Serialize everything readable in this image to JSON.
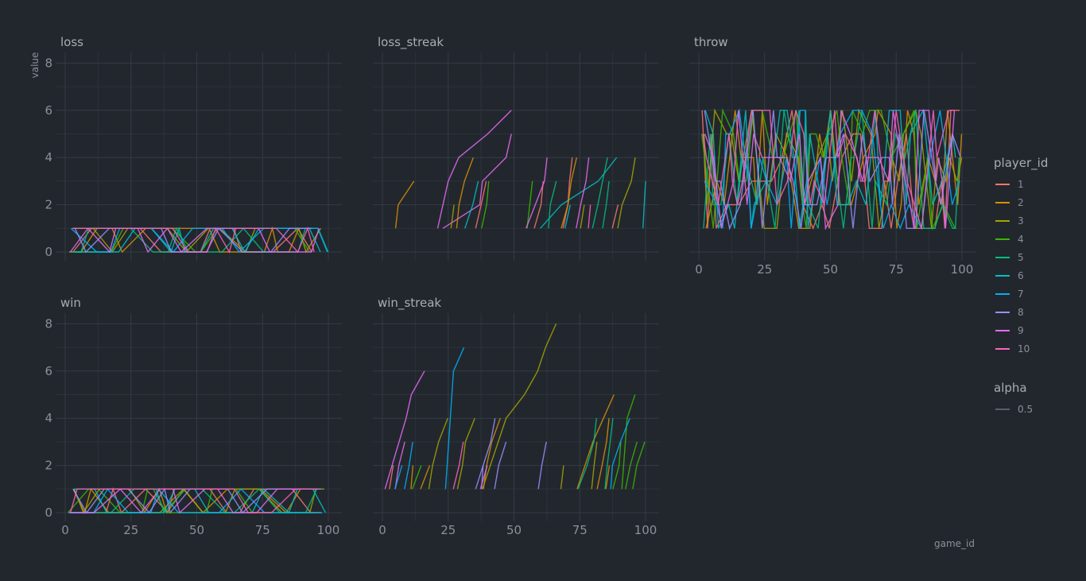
{
  "chart_data": {
    "type": "line",
    "facets": [
      "loss",
      "loss_streak",
      "throw",
      "win",
      "win_streak"
    ],
    "xlabel": "game_id",
    "ylabel": "value",
    "xlim": [
      0,
      100
    ],
    "ylim": [
      0,
      8
    ],
    "x_ticks": [
      0,
      25,
      50,
      75,
      100
    ],
    "y_ticks": [
      0,
      2,
      4,
      6,
      8
    ],
    "grid": true,
    "legend": {
      "title": "player_id",
      "placement": "right",
      "entries": [
        "1",
        "2",
        "3",
        "4",
        "5",
        "6",
        "7",
        "8",
        "9",
        "10"
      ]
    },
    "legend_alpha": {
      "title": "alpha",
      "entries": [
        "0.5"
      ]
    },
    "colors": [
      "#f8766d",
      "#d89000",
      "#a3a500",
      "#39b600",
      "#00bf7d",
      "#00bfc4",
      "#00b0f6",
      "#9590ff",
      "#e76bf3",
      "#ff62bc"
    ],
    "series_samples": {
      "loss_streak": [
        {
          "player": "2",
          "x": [
            5,
            6,
            12
          ],
          "y": [
            1,
            2,
            3
          ]
        },
        {
          "player": "9",
          "x": [
            21,
            25,
            29,
            40,
            49
          ],
          "y": [
            1,
            3,
            4,
            5,
            6
          ]
        },
        {
          "player": "9",
          "x": [
            23,
            37,
            38,
            47,
            49
          ],
          "y": [
            1,
            2,
            3,
            4,
            5
          ]
        },
        {
          "player": "4",
          "x": [
            55,
            57
          ],
          "y": [
            1,
            3
          ]
        },
        {
          "player": "6",
          "x": [
            60,
            68,
            82,
            89
          ],
          "y": [
            1,
            2,
            3,
            4
          ]
        },
        {
          "player": "6",
          "x": [
            99,
            100
          ],
          "y": [
            1,
            3
          ]
        }
      ],
      "win_streak": [
        {
          "player": "7",
          "x": [
            24,
            27,
            31
          ],
          "y": [
            1,
            6,
            7
          ]
        },
        {
          "player": "3",
          "x": [
            38,
            47,
            54,
            59,
            62,
            66
          ],
          "y": [
            1,
            4,
            5,
            6,
            7,
            8
          ]
        },
        {
          "player": "9",
          "x": [
            1,
            9,
            11,
            16
          ],
          "y": [
            1,
            4,
            5,
            6
          ]
        },
        {
          "player": "2",
          "x": [
            74,
            80,
            88
          ],
          "y": [
            1,
            3,
            5
          ]
        },
        {
          "player": "4",
          "x": [
            91,
            93,
            96
          ],
          "y": [
            1,
            4,
            5
          ]
        }
      ]
    }
  }
}
